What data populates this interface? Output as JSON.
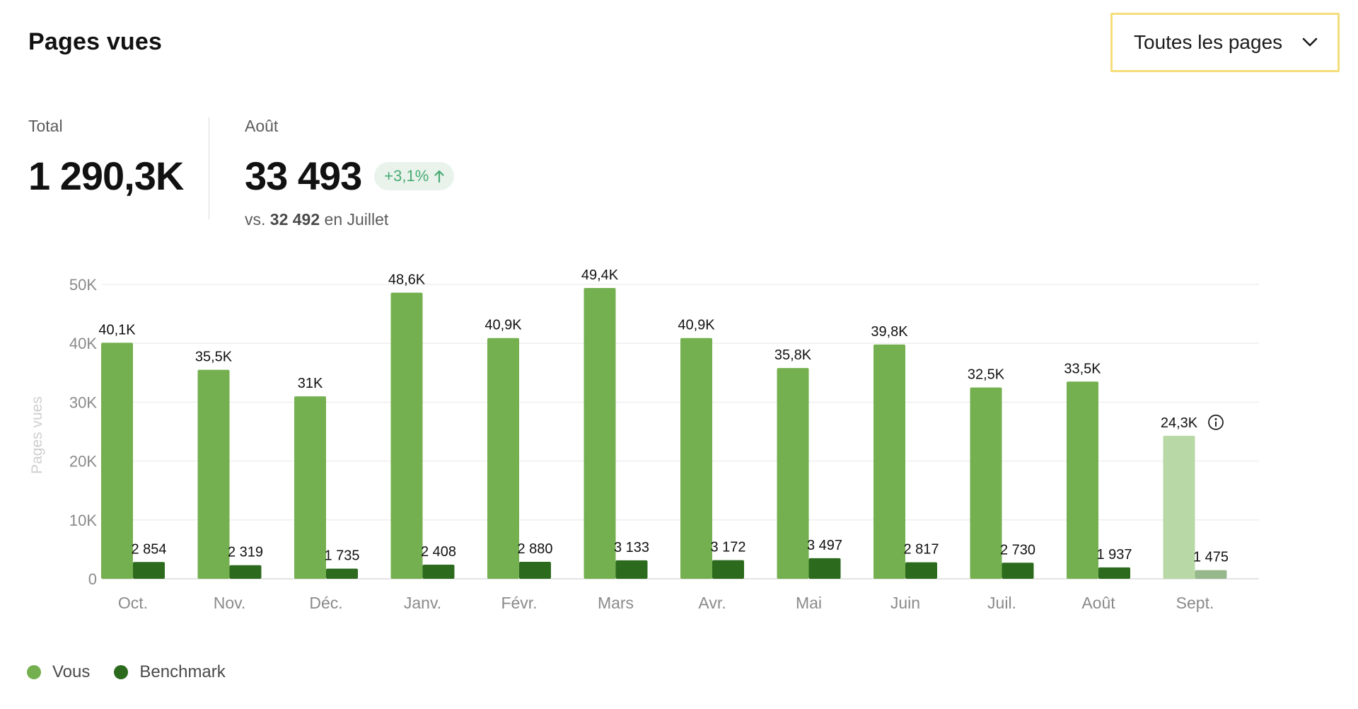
{
  "header": {
    "title": "Pages vues",
    "filter": {
      "selected": "Toutes les pages",
      "icon": "chevron-down-icon"
    }
  },
  "kpis": {
    "total": {
      "label": "Total",
      "value": "1 290,3K"
    },
    "month": {
      "label": "Août",
      "value": "33 493",
      "delta": "+3,1%",
      "delta_icon": "arrow-up-icon",
      "comparison_prefix": "vs.",
      "comparison_value": "32 492",
      "comparison_suffix": "en Juillet"
    }
  },
  "colors": {
    "vous": "#74b04f",
    "benchmark": "#2c6b1e",
    "vous_partial": "#b8d9a5",
    "benchmark_partial": "#97b88d",
    "filter_border": "#f5de7a",
    "delta_bg": "#e9f3ec",
    "delta_text": "#4aab74"
  },
  "chart_data": {
    "type": "bar",
    "ylabel": "Pages vues",
    "ylim": [
      0,
      50000
    ],
    "yticks": [
      0,
      10000,
      20000,
      30000,
      40000,
      50000
    ],
    "ytick_labels": [
      "0",
      "10K",
      "20K",
      "30K",
      "40K",
      "50K"
    ],
    "grid": true,
    "legend_position": "bottom-left",
    "categories": [
      "Oct.",
      "Nov.",
      "Déc.",
      "Janv.",
      "Févr.",
      "Mars",
      "Avr.",
      "Mai",
      "Juin",
      "Juil.",
      "Août",
      "Sept."
    ],
    "series": [
      {
        "name": "Vous",
        "values": [
          40100,
          35500,
          31000,
          48600,
          40900,
          49400,
          40900,
          35800,
          39800,
          32500,
          33500,
          24300
        ],
        "labels": [
          "40,1K",
          "35,5K",
          "31K",
          "48,6K",
          "40,9K",
          "49,4K",
          "40,9K",
          "35,8K",
          "39,8K",
          "32,5K",
          "33,5K",
          "24,3K"
        ]
      },
      {
        "name": "Benchmark",
        "values": [
          2854,
          2319,
          1735,
          2408,
          2880,
          3133,
          3172,
          3497,
          2817,
          2730,
          1937,
          1475
        ],
        "labels": [
          "2 854",
          "2 319",
          "1 735",
          "2 408",
          "2 880",
          "3 133",
          "3 172",
          "3 497",
          "2 817",
          "2 730",
          "1 937",
          "1 475"
        ]
      }
    ],
    "partial_category": "Sept.",
    "partial_icon": "info-icon"
  }
}
